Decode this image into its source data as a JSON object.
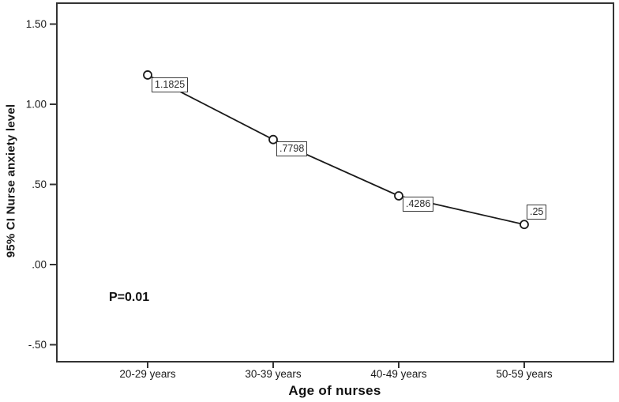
{
  "chart_data": {
    "type": "line",
    "title": "",
    "xlabel": "Age of nurses",
    "ylabel": "95% CI Nurse anxiety level",
    "categories": [
      "20-29 years",
      "30-39 years",
      "40-49 years",
      "50-59 years"
    ],
    "values": [
      1.1825,
      0.7798,
      0.4286,
      0.25
    ],
    "point_labels": [
      "1.1825",
      ".7798",
      ".4286",
      ".25"
    ],
    "y_ticks": [
      {
        "label": "1.50",
        "value": 1.5
      },
      {
        "label": "1.00",
        "value": 1.0
      },
      {
        "label": ".50",
        "value": 0.5
      },
      {
        "label": ".00",
        "value": 0.0
      },
      {
        "label": "-.50",
        "value": -0.5
      }
    ],
    "ylim": [
      -0.5,
      1.5
    ],
    "annotation": "P=0.01",
    "legend": null,
    "grid": false,
    "marker": "open-circle",
    "line_color": "#1a1a1a",
    "frame_color": "#333333",
    "background_color": "#ffffff"
  }
}
